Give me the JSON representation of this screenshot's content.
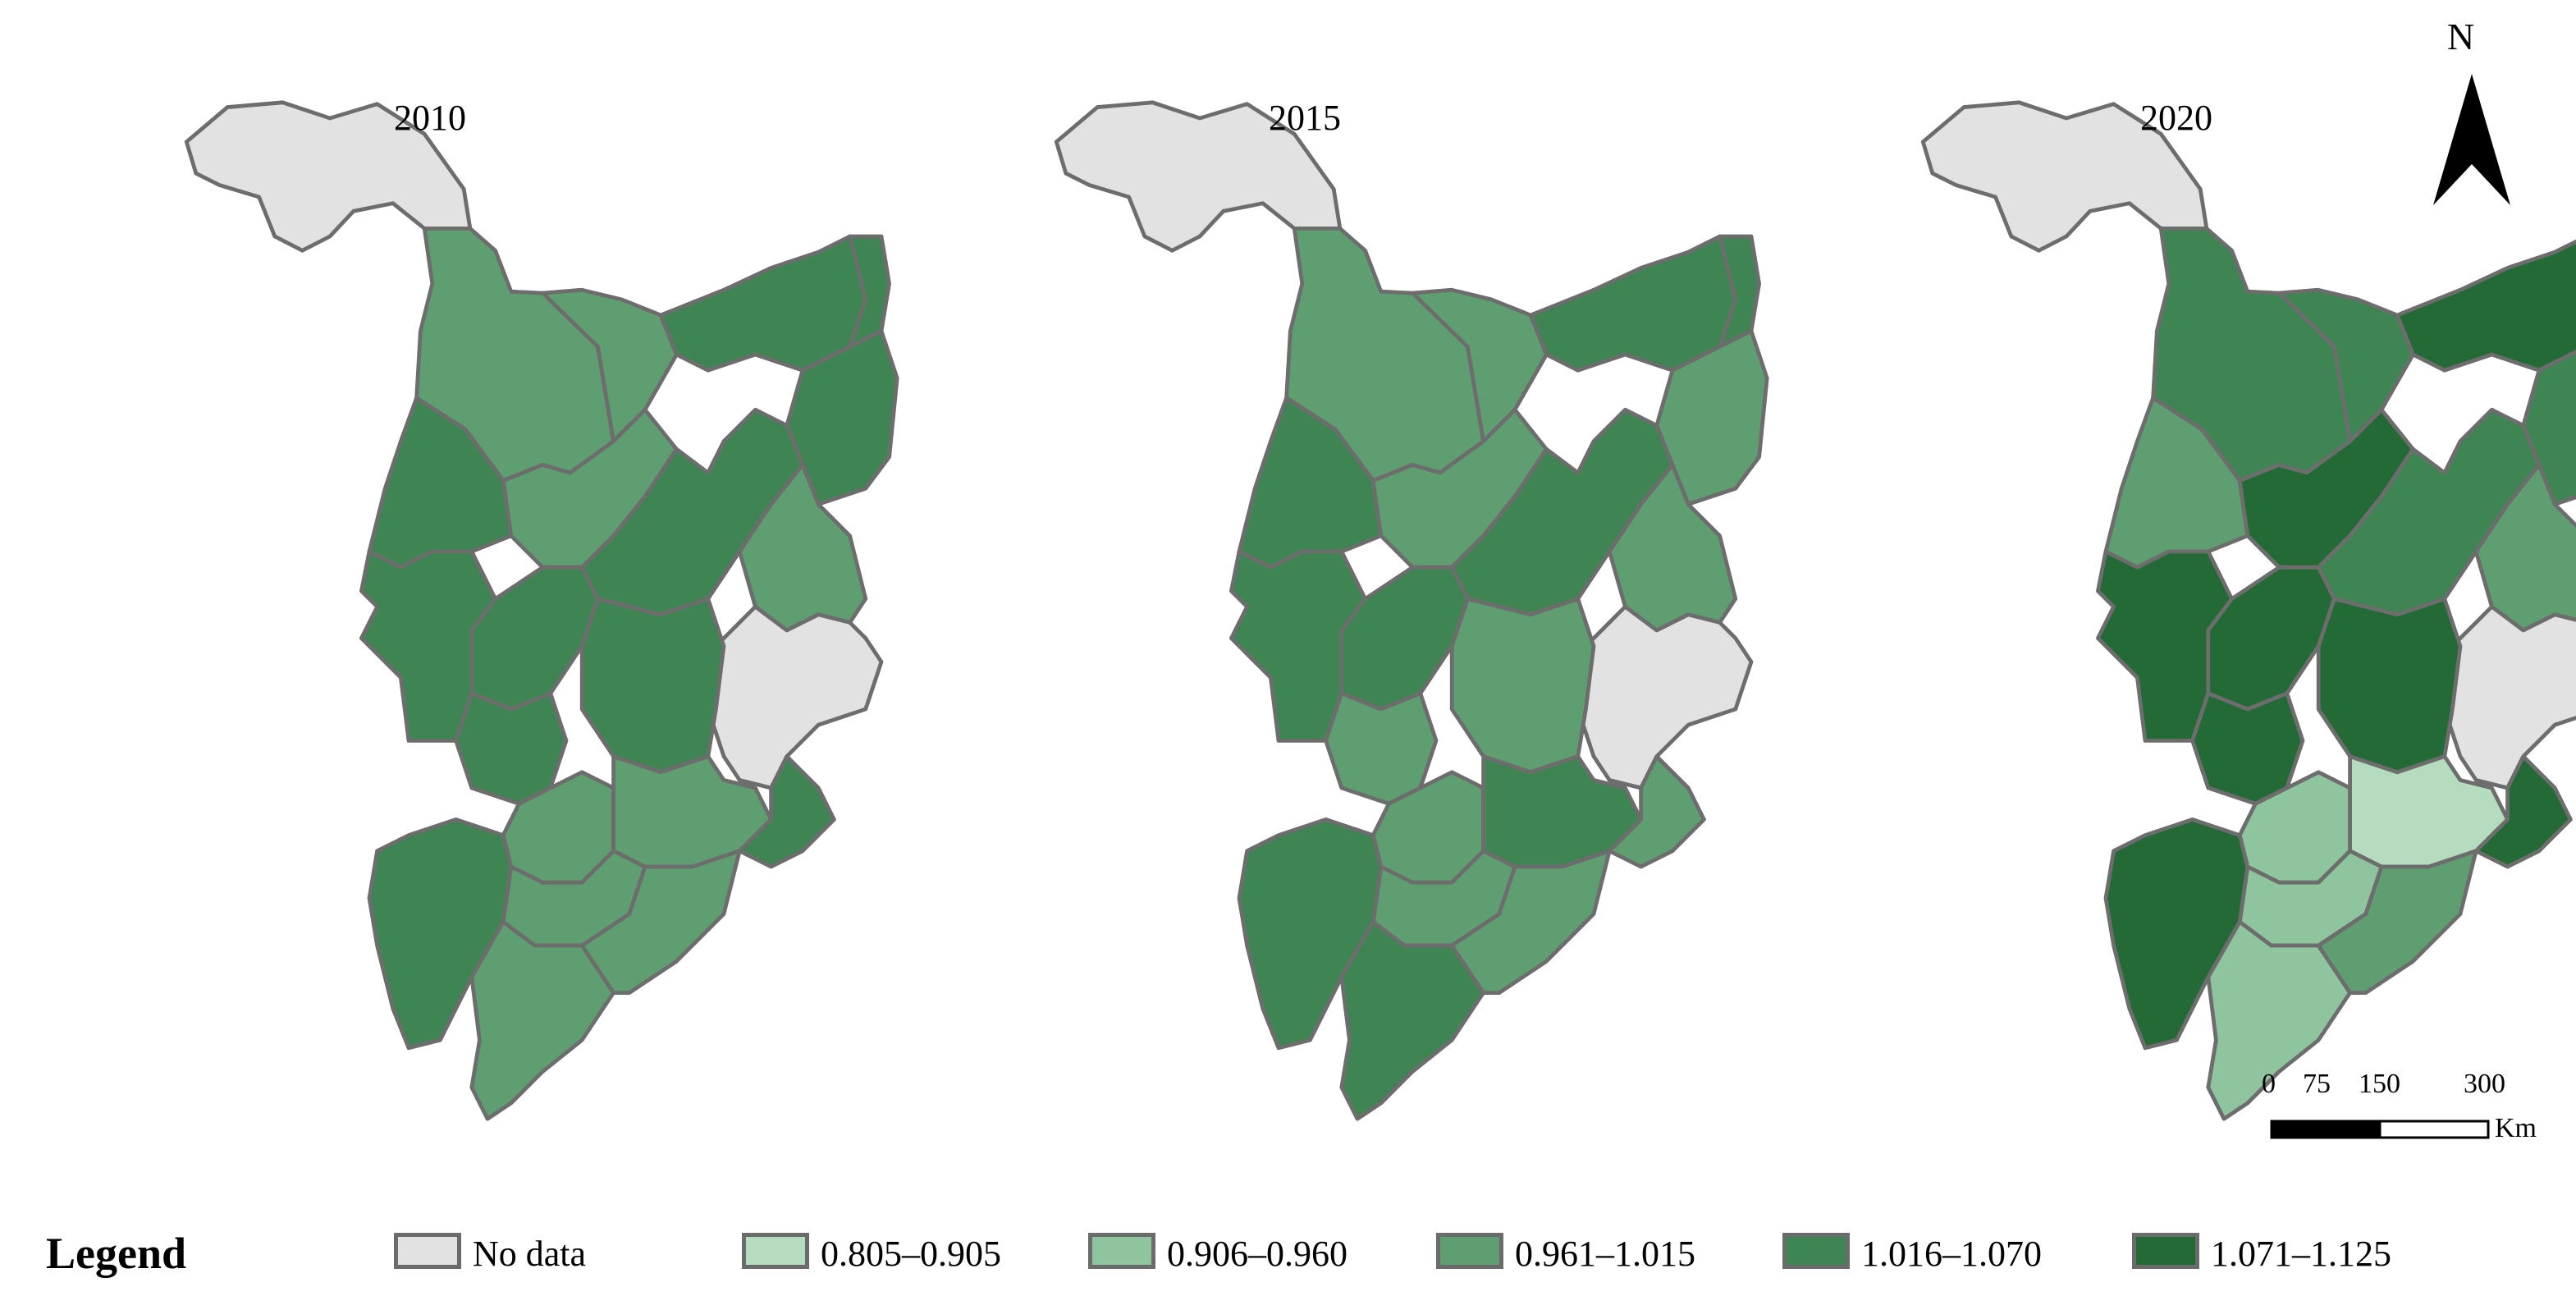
{
  "panels": [
    {
      "title": "2010",
      "key": "y2010"
    },
    {
      "title": "2015",
      "key": "y2015"
    },
    {
      "title": "2020",
      "key": "y2020"
    }
  ],
  "legend": {
    "title": "Legend",
    "items": [
      {
        "label": "No data",
        "color": "#e2e2e2"
      },
      {
        "label": "0.805–0.905",
        "color": "#b5dcbf"
      },
      {
        "label": "0.906–0.960",
        "color": "#8ec59e"
      },
      {
        "label": "0.961–1.015",
        "color": "#5f9e70"
      },
      {
        "label": "1.016–1.070",
        "color": "#3f8453"
      },
      {
        "label": "1.071–1.125",
        "color": "#236a37"
      }
    ]
  },
  "north_arrow": {
    "label": "N"
  },
  "scale_bar": {
    "ticks": [
      "0",
      "75",
      "150",
      "300"
    ],
    "unit": "Km"
  },
  "border_color": "#6d6d6d",
  "region_classes": {
    "y2010": {
      "north_tip": "No data",
      "northwest": "0.961–1.015",
      "north_central": "0.961–1.015",
      "northeast_a": "1.016–1.070",
      "northeast_b": "1.016–1.070",
      "northeast_c": "1.016–1.070",
      "west_a": "1.016–1.070",
      "west_b": "1.016–1.070",
      "central_a": "0.961–1.015",
      "central_b": "1.016–1.070",
      "east_mid": "0.961–1.015",
      "east_nodata": "No data",
      "sw_a": "1.016–1.070",
      "sw_b": "1.016–1.070",
      "center_south": "1.016–1.070",
      "south_a": "0.961–1.015",
      "south_b": "0.961–1.015",
      "south_c": "0.961–1.015",
      "southwest_tip": "1.016–1.070",
      "peninsula": "0.961–1.015",
      "coast_e": "0.961–1.015",
      "coast_n": "1.016–1.070"
    },
    "y2015": {
      "north_tip": "No data",
      "northwest": "0.961–1.015",
      "north_central": "0.961–1.015",
      "northeast_a": "1.016–1.070",
      "northeast_b": "1.016–1.070",
      "northeast_c": "0.961–1.015",
      "west_a": "1.016–1.070",
      "west_b": "1.016–1.070",
      "central_a": "0.961–1.015",
      "central_b": "1.016–1.070",
      "east_mid": "0.961–1.015",
      "east_nodata": "No data",
      "sw_a": "1.016–1.070",
      "sw_b": "0.961–1.015",
      "center_south": "0.961–1.015",
      "south_a": "0.961–1.015",
      "south_b": "1.016–1.070",
      "south_c": "0.961–1.015",
      "southwest_tip": "1.016–1.070",
      "peninsula": "1.016–1.070",
      "coast_e": "0.961–1.015",
      "coast_n": "0.961–1.015"
    },
    "y2020": {
      "north_tip": "No data",
      "northwest": "1.016–1.070",
      "north_central": "1.016–1.070",
      "northeast_a": "1.071–1.125",
      "northeast_b": "0.906–0.960",
      "northeast_c": "1.016–1.070",
      "west_a": "0.961–1.015",
      "west_b": "1.071–1.125",
      "central_a": "1.071–1.125",
      "central_b": "1.016–1.070",
      "east_mid": "0.961–1.015",
      "east_nodata": "No data",
      "sw_a": "1.071–1.125",
      "sw_b": "1.071–1.125",
      "center_south": "1.071–1.125",
      "south_a": "0.906–0.960",
      "south_b": "0.805–0.905",
      "south_c": "0.906–0.960",
      "southwest_tip": "1.071–1.125",
      "peninsula": "0.906–0.960",
      "coast_e": "0.961–1.015",
      "coast_n": "1.071–1.125"
    }
  }
}
